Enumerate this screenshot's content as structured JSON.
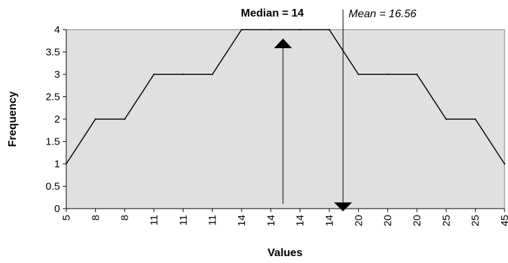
{
  "chart_data": {
    "type": "line",
    "categories": [
      "5",
      "8",
      "8",
      "11",
      "11",
      "11",
      "14",
      "14",
      "14",
      "14",
      "20",
      "20",
      "20",
      "25",
      "25",
      "45"
    ],
    "values": [
      1,
      2,
      2,
      3,
      3,
      3,
      4,
      4,
      4,
      4,
      3,
      3,
      3,
      2,
      2,
      1
    ],
    "xlabel": "Values",
    "ylabel": "Frequency",
    "ylim": [
      0,
      4
    ],
    "yticks": [
      "0",
      "0.5",
      "1",
      "1.5",
      "2",
      "2.5",
      "3",
      "3.5",
      "4"
    ],
    "grid": false,
    "plot_background": "#e0e0e0",
    "line_color": "#000000",
    "annotations": {
      "median": {
        "label": "Median = 14",
        "value": 14
      },
      "mean": {
        "label": "Mean = 16.56",
        "value": 16.56
      }
    }
  }
}
